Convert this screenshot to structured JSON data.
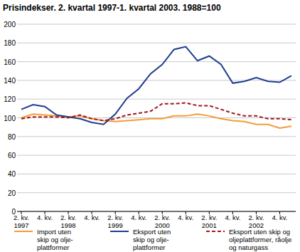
{
  "chart_data": {
    "type": "line",
    "title": "Prisindekser. 2. kvartal 1997-1. kvartal 2003. 1988=100",
    "categories": [
      "2. kv.\n1997",
      null,
      "4. kv.",
      null,
      "2. kv.\n1998",
      null,
      "4. kv.",
      null,
      "2. kv.\n1999",
      null,
      "4. kv.",
      null,
      "2. kv.\n2000",
      null,
      "4. kv.",
      null,
      "2. kv.\n2001",
      null,
      "4. kv.",
      null,
      "2. kv.\n2002",
      null,
      "4. kv.",
      null
    ],
    "series": [
      {
        "name": "Import uten\nskip og olje-\nplattformer",
        "color": "#f39c3a",
        "line_style": "solid",
        "values": [
          100,
          104,
          103,
          102,
          101,
          102,
          99,
          97,
          96,
          97,
          98,
          99,
          99,
          102,
          102,
          104,
          102,
          99,
          97,
          96,
          93,
          93,
          89,
          91
        ]
      },
      {
        "name": "Eksport uten\nskip og olje-\nplattformer",
        "color": "#1f3d8f",
        "line_style": "solid",
        "values": [
          109,
          114,
          112,
          103,
          101,
          99,
          95,
          93,
          104,
          121,
          131,
          147,
          157,
          173,
          176,
          161,
          166,
          157,
          137,
          139,
          143,
          139,
          138,
          145
        ]
      },
      {
        "name": "Eksport uten skip og\noljeplattformer, råolje\nog naturgass",
        "color": "#9e1a1a",
        "line_style": "dashed",
        "values": [
          99,
          101,
          101,
          101,
          100,
          103,
          99,
          97,
          99,
          103,
          105,
          107,
          115,
          115,
          116,
          113,
          113,
          109,
          105,
          102,
          102,
          99,
          99,
          98
        ]
      }
    ],
    "ylim": [
      0,
      200
    ],
    "yticks": [
      0,
      20,
      40,
      60,
      80,
      100,
      120,
      140,
      160,
      180,
      200
    ],
    "grid": true,
    "legend": "bottom"
  }
}
